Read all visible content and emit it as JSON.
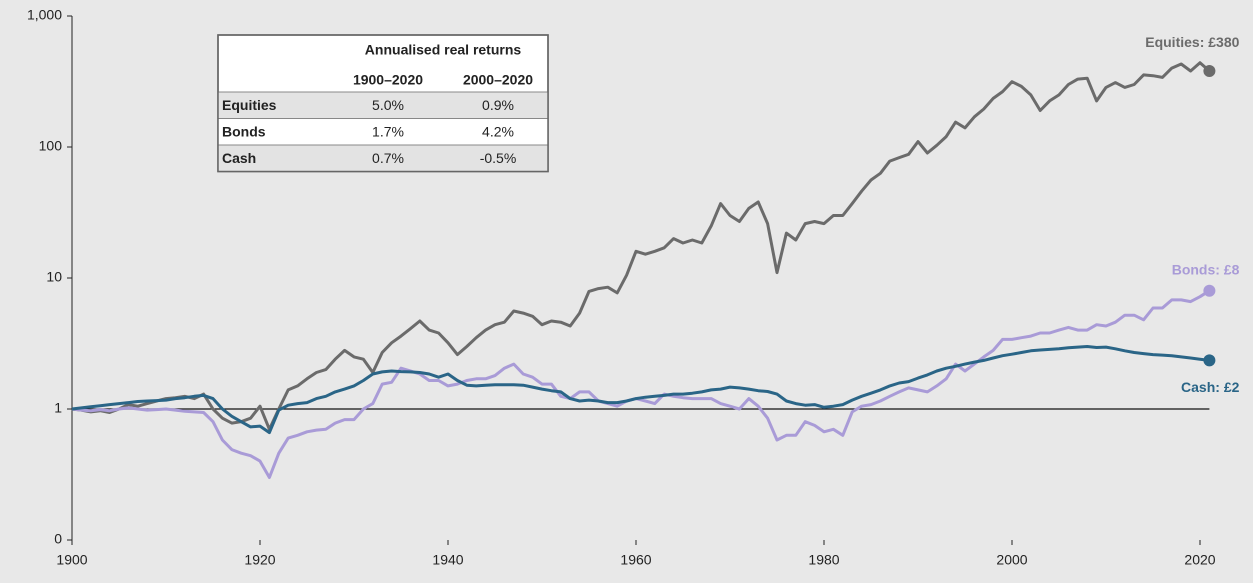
{
  "chart_data": {
    "type": "line",
    "log_y": true,
    "x": [
      1900,
      1901,
      1902,
      1903,
      1904,
      1905,
      1906,
      1907,
      1908,
      1909,
      1910,
      1911,
      1912,
      1913,
      1914,
      1915,
      1916,
      1917,
      1918,
      1919,
      1920,
      1921,
      1922,
      1923,
      1924,
      1925,
      1926,
      1927,
      1928,
      1929,
      1930,
      1931,
      1932,
      1933,
      1934,
      1935,
      1936,
      1937,
      1938,
      1939,
      1940,
      1941,
      1942,
      1943,
      1944,
      1945,
      1946,
      1947,
      1948,
      1949,
      1950,
      1951,
      1952,
      1953,
      1954,
      1955,
      1956,
      1957,
      1958,
      1959,
      1960,
      1961,
      1962,
      1963,
      1964,
      1965,
      1966,
      1967,
      1968,
      1969,
      1970,
      1971,
      1972,
      1973,
      1974,
      1975,
      1976,
      1977,
      1978,
      1979,
      1980,
      1981,
      1982,
      1983,
      1984,
      1985,
      1986,
      1987,
      1988,
      1989,
      1990,
      1991,
      1992,
      1993,
      1994,
      1995,
      1996,
      1997,
      1998,
      1999,
      2000,
      2001,
      2002,
      2003,
      2004,
      2005,
      2006,
      2007,
      2008,
      2009,
      2010,
      2011,
      2012,
      2013,
      2014,
      2015,
      2016,
      2017,
      2018,
      2019,
      2020,
      2021
    ],
    "series": [
      {
        "name": "Equities: £380",
        "color": "#6b6b6b",
        "values": [
          1,
          0.98,
          0.95,
          0.97,
          0.94,
          1.0,
          1.08,
          1.05,
          1.1,
          1.15,
          1.2,
          1.22,
          1.25,
          1.2,
          1.3,
          1.0,
          0.85,
          0.78,
          0.8,
          0.85,
          1.05,
          0.7,
          1.0,
          1.4,
          1.5,
          1.7,
          1.9,
          2.0,
          2.4,
          2.8,
          2.5,
          2.4,
          1.9,
          2.7,
          3.2,
          3.6,
          4.1,
          4.7,
          4.0,
          3.8,
          3.2,
          2.6,
          3.0,
          3.5,
          4.0,
          4.4,
          4.6,
          5.6,
          5.4,
          5.1,
          4.4,
          4.7,
          4.6,
          4.3,
          5.4,
          7.9,
          8.3,
          8.5,
          7.7,
          10.5,
          16,
          15.2,
          16,
          17,
          20,
          18.5,
          19.5,
          18.5,
          25,
          37,
          30,
          27,
          34,
          38,
          26,
          11,
          22,
          19.5,
          26,
          27,
          26,
          30,
          30,
          37,
          46,
          56,
          63,
          78,
          83,
          88,
          110,
          90,
          103,
          120,
          155,
          140,
          170,
          195,
          235,
          265,
          315,
          290,
          250,
          190,
          225,
          250,
          300,
          330,
          335,
          225,
          285,
          310,
          285,
          300,
          355,
          350,
          340,
          400,
          430,
          380,
          440,
          380
        ]
      },
      {
        "name": "Bonds: £8",
        "color": "#a99bd7",
        "values": [
          1,
          0.98,
          0.97,
          0.99,
          0.97,
          1.0,
          1.02,
          1.0,
          0.98,
          0.99,
          1.0,
          0.98,
          0.96,
          0.95,
          0.94,
          0.8,
          0.58,
          0.49,
          0.46,
          0.44,
          0.4,
          0.3,
          0.46,
          0.6,
          0.63,
          0.67,
          0.69,
          0.7,
          0.78,
          0.83,
          0.83,
          1.0,
          1.1,
          1.55,
          1.6,
          2.05,
          1.95,
          1.85,
          1.65,
          1.65,
          1.5,
          1.55,
          1.65,
          1.7,
          1.7,
          1.8,
          2.05,
          2.2,
          1.85,
          1.75,
          1.55,
          1.55,
          1.25,
          1.2,
          1.35,
          1.35,
          1.15,
          1.1,
          1.05,
          1.15,
          1.2,
          1.15,
          1.1,
          1.3,
          1.25,
          1.22,
          1.2,
          1.2,
          1.2,
          1.1,
          1.05,
          1.0,
          1.2,
          1.05,
          0.85,
          0.58,
          0.63,
          0.63,
          0.8,
          0.75,
          0.67,
          0.7,
          0.63,
          0.95,
          1.05,
          1.08,
          1.15,
          1.25,
          1.35,
          1.45,
          1.4,
          1.35,
          1.5,
          1.7,
          2.2,
          1.95,
          2.2,
          2.5,
          2.8,
          3.4,
          3.4,
          3.5,
          3.6,
          3.8,
          3.8,
          4.0,
          4.2,
          4.0,
          4.0,
          4.4,
          4.3,
          4.6,
          5.2,
          5.2,
          4.8,
          5.9,
          5.9,
          6.8,
          6.8,
          6.6,
          7.2,
          8
        ]
      },
      {
        "name": "Cash: £2",
        "color": "#2a6587",
        "values": [
          1,
          1.02,
          1.04,
          1.06,
          1.08,
          1.1,
          1.12,
          1.14,
          1.15,
          1.16,
          1.17,
          1.2,
          1.22,
          1.25,
          1.27,
          1.2,
          1.0,
          0.88,
          0.8,
          0.73,
          0.74,
          0.66,
          0.98,
          1.07,
          1.1,
          1.12,
          1.2,
          1.25,
          1.35,
          1.42,
          1.5,
          1.65,
          1.85,
          1.92,
          1.95,
          1.93,
          1.92,
          1.9,
          1.85,
          1.75,
          1.85,
          1.65,
          1.52,
          1.5,
          1.52,
          1.53,
          1.53,
          1.53,
          1.52,
          1.47,
          1.42,
          1.38,
          1.35,
          1.2,
          1.15,
          1.17,
          1.15,
          1.12,
          1.12,
          1.15,
          1.2,
          1.23,
          1.25,
          1.27,
          1.3,
          1.3,
          1.32,
          1.35,
          1.4,
          1.42,
          1.47,
          1.45,
          1.42,
          1.38,
          1.36,
          1.3,
          1.15,
          1.1,
          1.07,
          1.08,
          1.03,
          1.05,
          1.08,
          1.17,
          1.25,
          1.32,
          1.4,
          1.5,
          1.58,
          1.62,
          1.72,
          1.82,
          1.95,
          2.05,
          2.12,
          2.2,
          2.28,
          2.35,
          2.45,
          2.55,
          2.62,
          2.7,
          2.78,
          2.82,
          2.85,
          2.88,
          2.93,
          2.97,
          3.0,
          2.95,
          2.97,
          2.88,
          2.78,
          2.7,
          2.65,
          2.6,
          2.58,
          2.55,
          2.5,
          2.45,
          2.4,
          2.35
        ]
      }
    ],
    "xlim": [
      1900,
      2021
    ],
    "xticks": [
      1900,
      1920,
      1940,
      1960,
      1980,
      2000,
      2020
    ],
    "ylim": [
      0.1,
      1000
    ],
    "yticks": [
      {
        "value": 0.1,
        "label": "0"
      },
      1,
      10,
      100,
      {
        "value": 1000,
        "label": "1,000"
      }
    ],
    "table": {
      "title": "Annualised real returns",
      "columns": [
        "1900–2020",
        "2000–2020"
      ],
      "rows": [
        [
          "Equities",
          "5.0%",
          "0.9%"
        ],
        [
          "Bonds",
          "1.7%",
          "4.2%"
        ],
        [
          "Cash",
          "0.7%",
          "-0.5%"
        ]
      ]
    }
  }
}
